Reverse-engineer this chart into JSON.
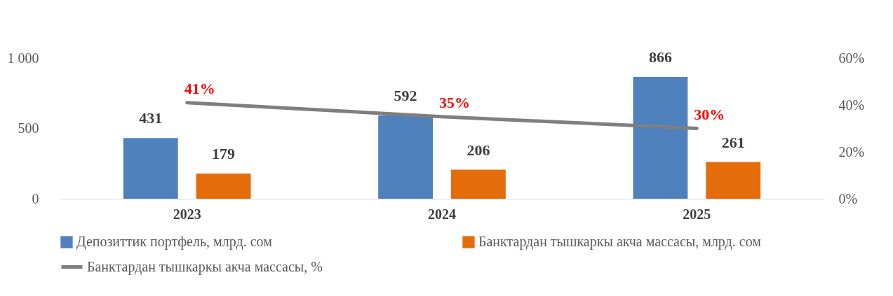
{
  "chart_data": {
    "type": "bar",
    "categories": [
      "2023",
      "2024",
      "2025"
    ],
    "series": [
      {
        "name": "Депозиттик портфель, млрд. сом",
        "color": "#4f81bd",
        "values": [
          431,
          592,
          866
        ],
        "value_labels": [
          "431",
          "592",
          "866"
        ]
      },
      {
        "name": "Банктардан тышкаркы акча массасы, млрд. сом",
        "color": "#e46c0a",
        "values": [
          179,
          206,
          261
        ],
        "value_labels": [
          "179",
          "206",
          "261"
        ]
      },
      {
        "name": "Банктардан тышкаркы акча массасы, %",
        "type": "line",
        "axis": "y2",
        "color": "#7f7f7f",
        "values": [
          41,
          35,
          30
        ],
        "value_labels": [
          "41%",
          "35%",
          "30%"
        ]
      }
    ],
    "ylim": [
      0,
      1000
    ],
    "yticks": [
      0,
      500,
      {
        "value": 1000,
        "label": "1 000"
      }
    ],
    "y2lim": [
      0,
      60
    ],
    "y2ticks": [
      {
        "value": 0,
        "label": "0%"
      },
      {
        "value": 20,
        "label": "20%"
      },
      {
        "value": 40,
        "label": "40%"
      },
      {
        "value": 60,
        "label": "60%"
      }
    ],
    "legend": "bottom",
    "marker": "none",
    "line_style": "solid",
    "grid": false
  }
}
